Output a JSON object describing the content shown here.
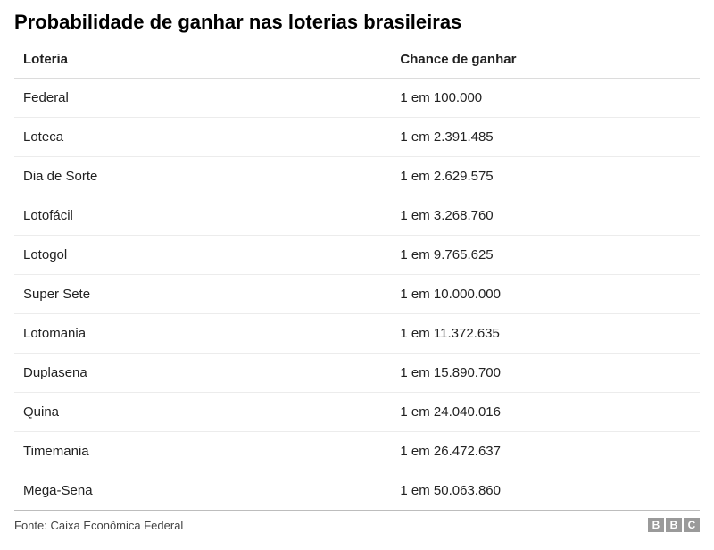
{
  "title": "Probabilidade de ganhar nas loterias brasileiras",
  "table": {
    "columns": [
      "Loteria",
      "Chance de ganhar"
    ],
    "rows": [
      [
        "Federal",
        "1 em 100.000"
      ],
      [
        "Loteca",
        "1 em 2.391.485"
      ],
      [
        "Dia de Sorte",
        "1 em 2.629.575"
      ],
      [
        "Lotofácil",
        "1 em 3.268.760"
      ],
      [
        "Lotogol",
        "1 em 9.765.625"
      ],
      [
        "Super Sete",
        "1 em 10.000.000"
      ],
      [
        "Lotomania",
        "1 em 11.372.635"
      ],
      [
        "Duplasena",
        "1 em 15.890.700"
      ],
      [
        "Quina",
        "1 em 24.040.016"
      ],
      [
        "Timemania",
        "1 em 26.472.637"
      ],
      [
        "Mega-Sena",
        "1 em 50.063.860"
      ]
    ],
    "column_widths": [
      "55%",
      "45%"
    ],
    "header_fontsize": 15,
    "cell_fontsize": 15,
    "border_color": "#ececec",
    "header_border_color": "#dcdcdc",
    "bottom_border_color": "#bdbdbd"
  },
  "source": "Fonte: Caixa Econômica Federal",
  "logo": {
    "letters": [
      "B",
      "B",
      "C"
    ],
    "box_color": "#9a9a9a",
    "text_color": "#ffffff"
  },
  "colors": {
    "background": "#ffffff",
    "title": "#000000",
    "text": "#222222",
    "source_text": "#444444"
  }
}
